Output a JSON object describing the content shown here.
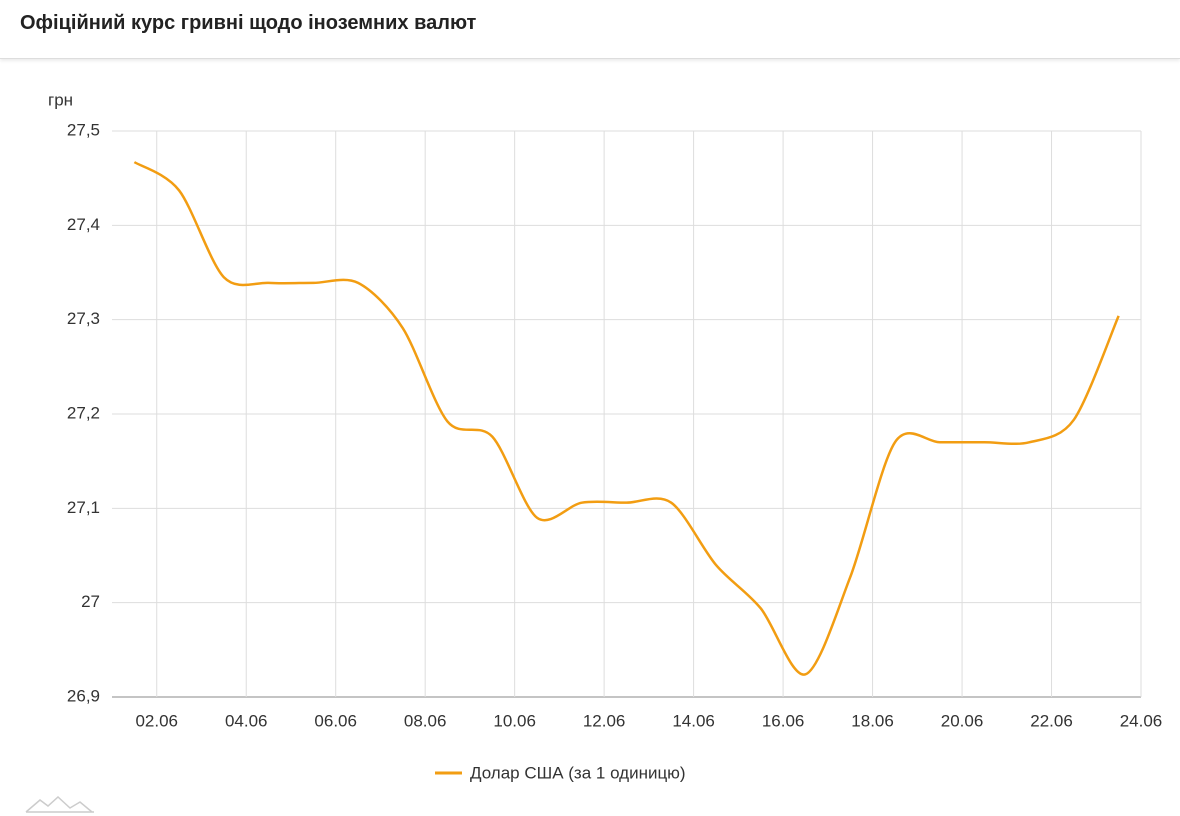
{
  "chart_data": {
    "type": "line",
    "title": "Офіційний курс гривні щодо іноземних валют",
    "y_label": "грн",
    "x": [
      1.5,
      2.5,
      3.5,
      4.5,
      5.5,
      6.5,
      7.5,
      8.5,
      9.5,
      10.5,
      11.5,
      12.5,
      13.5,
      14.5,
      15.5,
      16.5,
      17.5,
      18.5,
      19.5,
      20.5,
      21.5,
      22.5,
      23.5
    ],
    "series": [
      {
        "name": "Долар США (за 1 одиницю)",
        "color": "#f29d12",
        "values": [
          27.467,
          27.437,
          27.345,
          27.339,
          27.339,
          27.339,
          27.291,
          27.192,
          27.176,
          27.09,
          27.106,
          27.106,
          27.106,
          27.04,
          26.994,
          26.924,
          27.027,
          27.17,
          27.17,
          27.17,
          27.17,
          27.194,
          27.304
        ]
      }
    ],
    "xlim": [
      1,
      24
    ],
    "xticks": [
      {
        "value": 2,
        "label": "02.06"
      },
      {
        "value": 4,
        "label": "04.06"
      },
      {
        "value": 6,
        "label": "06.06"
      },
      {
        "value": 8,
        "label": "08.06"
      },
      {
        "value": 10,
        "label": "10.06"
      },
      {
        "value": 12,
        "label": "12.06"
      },
      {
        "value": 14,
        "label": "14.06"
      },
      {
        "value": 16,
        "label": "16.06"
      },
      {
        "value": 18,
        "label": "18.06"
      },
      {
        "value": 20,
        "label": "20.06"
      },
      {
        "value": 22,
        "label": "22.06"
      },
      {
        "value": 24,
        "label": "24.06"
      }
    ],
    "ylim": [
      26.9,
      27.5
    ],
    "yticks": [
      {
        "value": 26.9,
        "label": "26,9"
      },
      27,
      {
        "value": 27.1,
        "label": "27,1"
      },
      {
        "value": 27.2,
        "label": "27,2"
      },
      {
        "value": 27.3,
        "label": "27,3"
      },
      {
        "value": 27.4,
        "label": "27,4"
      },
      {
        "value": 27.5,
        "label": "27,5"
      }
    ],
    "grid": true,
    "legend": "bottom"
  }
}
